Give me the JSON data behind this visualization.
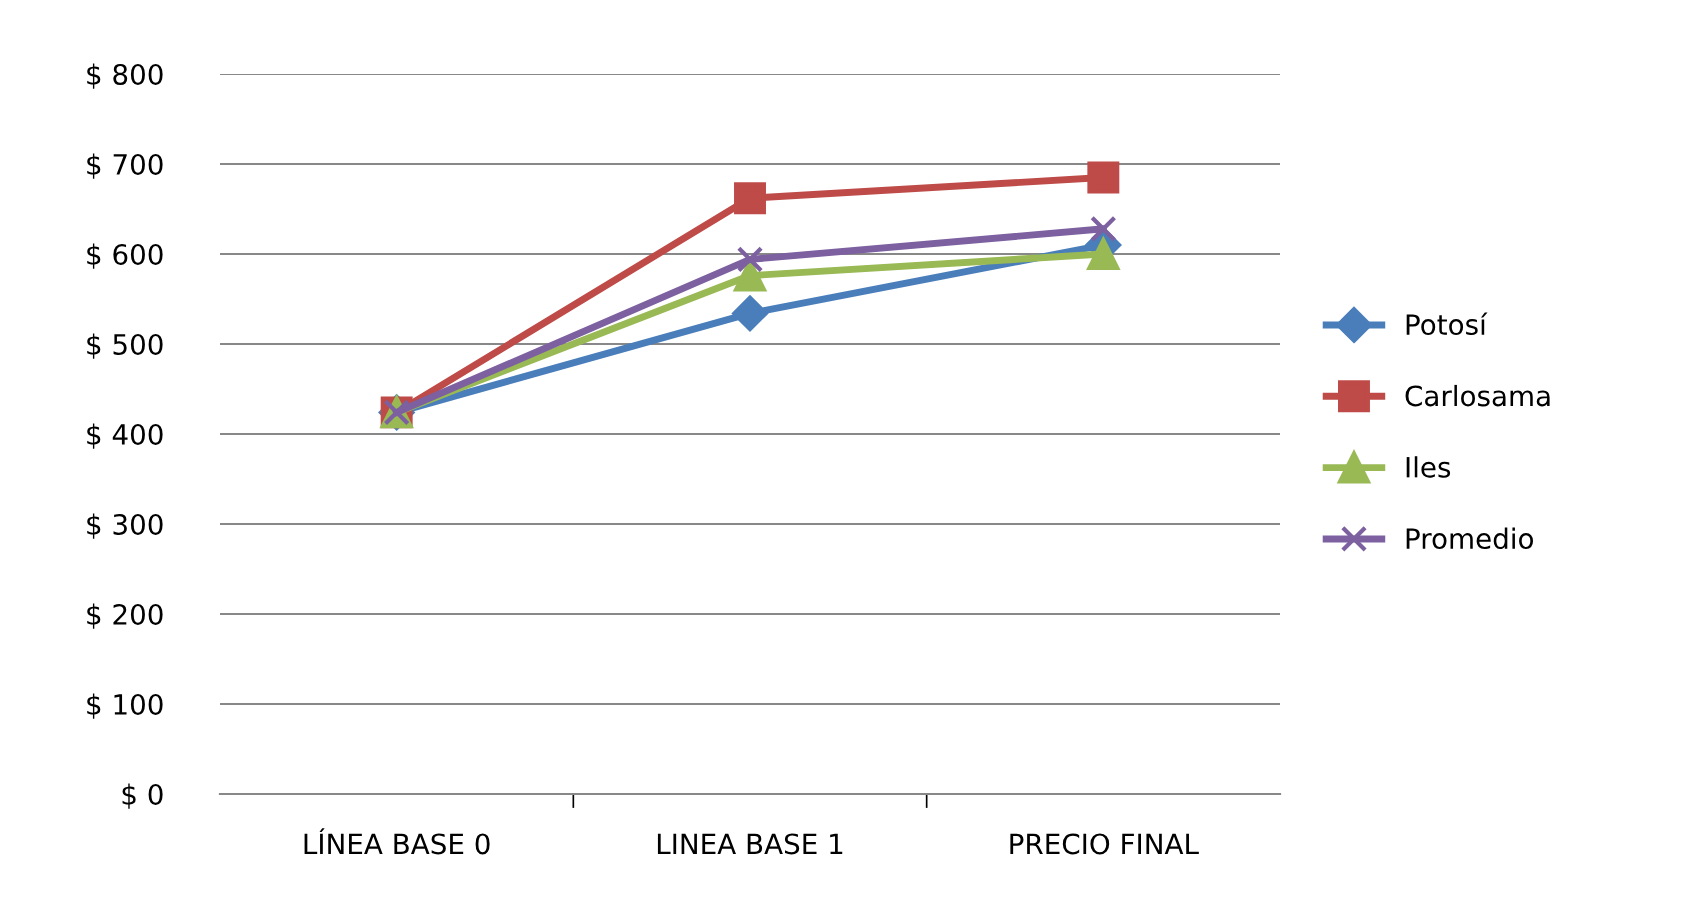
{
  "chart_data": {
    "type": "line",
    "categories": [
      "LÍNEA BASE 0",
      "LINEA BASE 1",
      "PRECIO FINAL"
    ],
    "series": [
      {
        "name": "Potosí",
        "color": "#4a7ebb",
        "marker": "diamond",
        "values": [
          424,
          534,
          610
        ]
      },
      {
        "name": "Carlosama",
        "color": "#be4b48",
        "marker": "square",
        "values": [
          424,
          662,
          685
        ]
      },
      {
        "name": "Iles",
        "color": "#98b954",
        "marker": "triangle",
        "values": [
          424,
          576,
          600
        ]
      },
      {
        "name": "Promedio",
        "color": "#7d60a0",
        "marker": "cross",
        "values": [
          424,
          594,
          628
        ]
      }
    ],
    "ylim": [
      0,
      800
    ],
    "yticks": [
      {
        "value": 0,
        "label": "$ 0"
      },
      {
        "value": 100,
        "label": "$ 100"
      },
      {
        "value": 200,
        "label": "$ 200"
      },
      {
        "value": 300,
        "label": "$ 300"
      },
      {
        "value": 400,
        "label": "$ 400"
      },
      {
        "value": 500,
        "label": "$ 500"
      },
      {
        "value": 600,
        "label": "$ 600"
      },
      {
        "value": 700,
        "label": "$ 700"
      },
      {
        "value": 800,
        "label": "$ 800"
      }
    ],
    "grid": "y",
    "legend": "right"
  }
}
